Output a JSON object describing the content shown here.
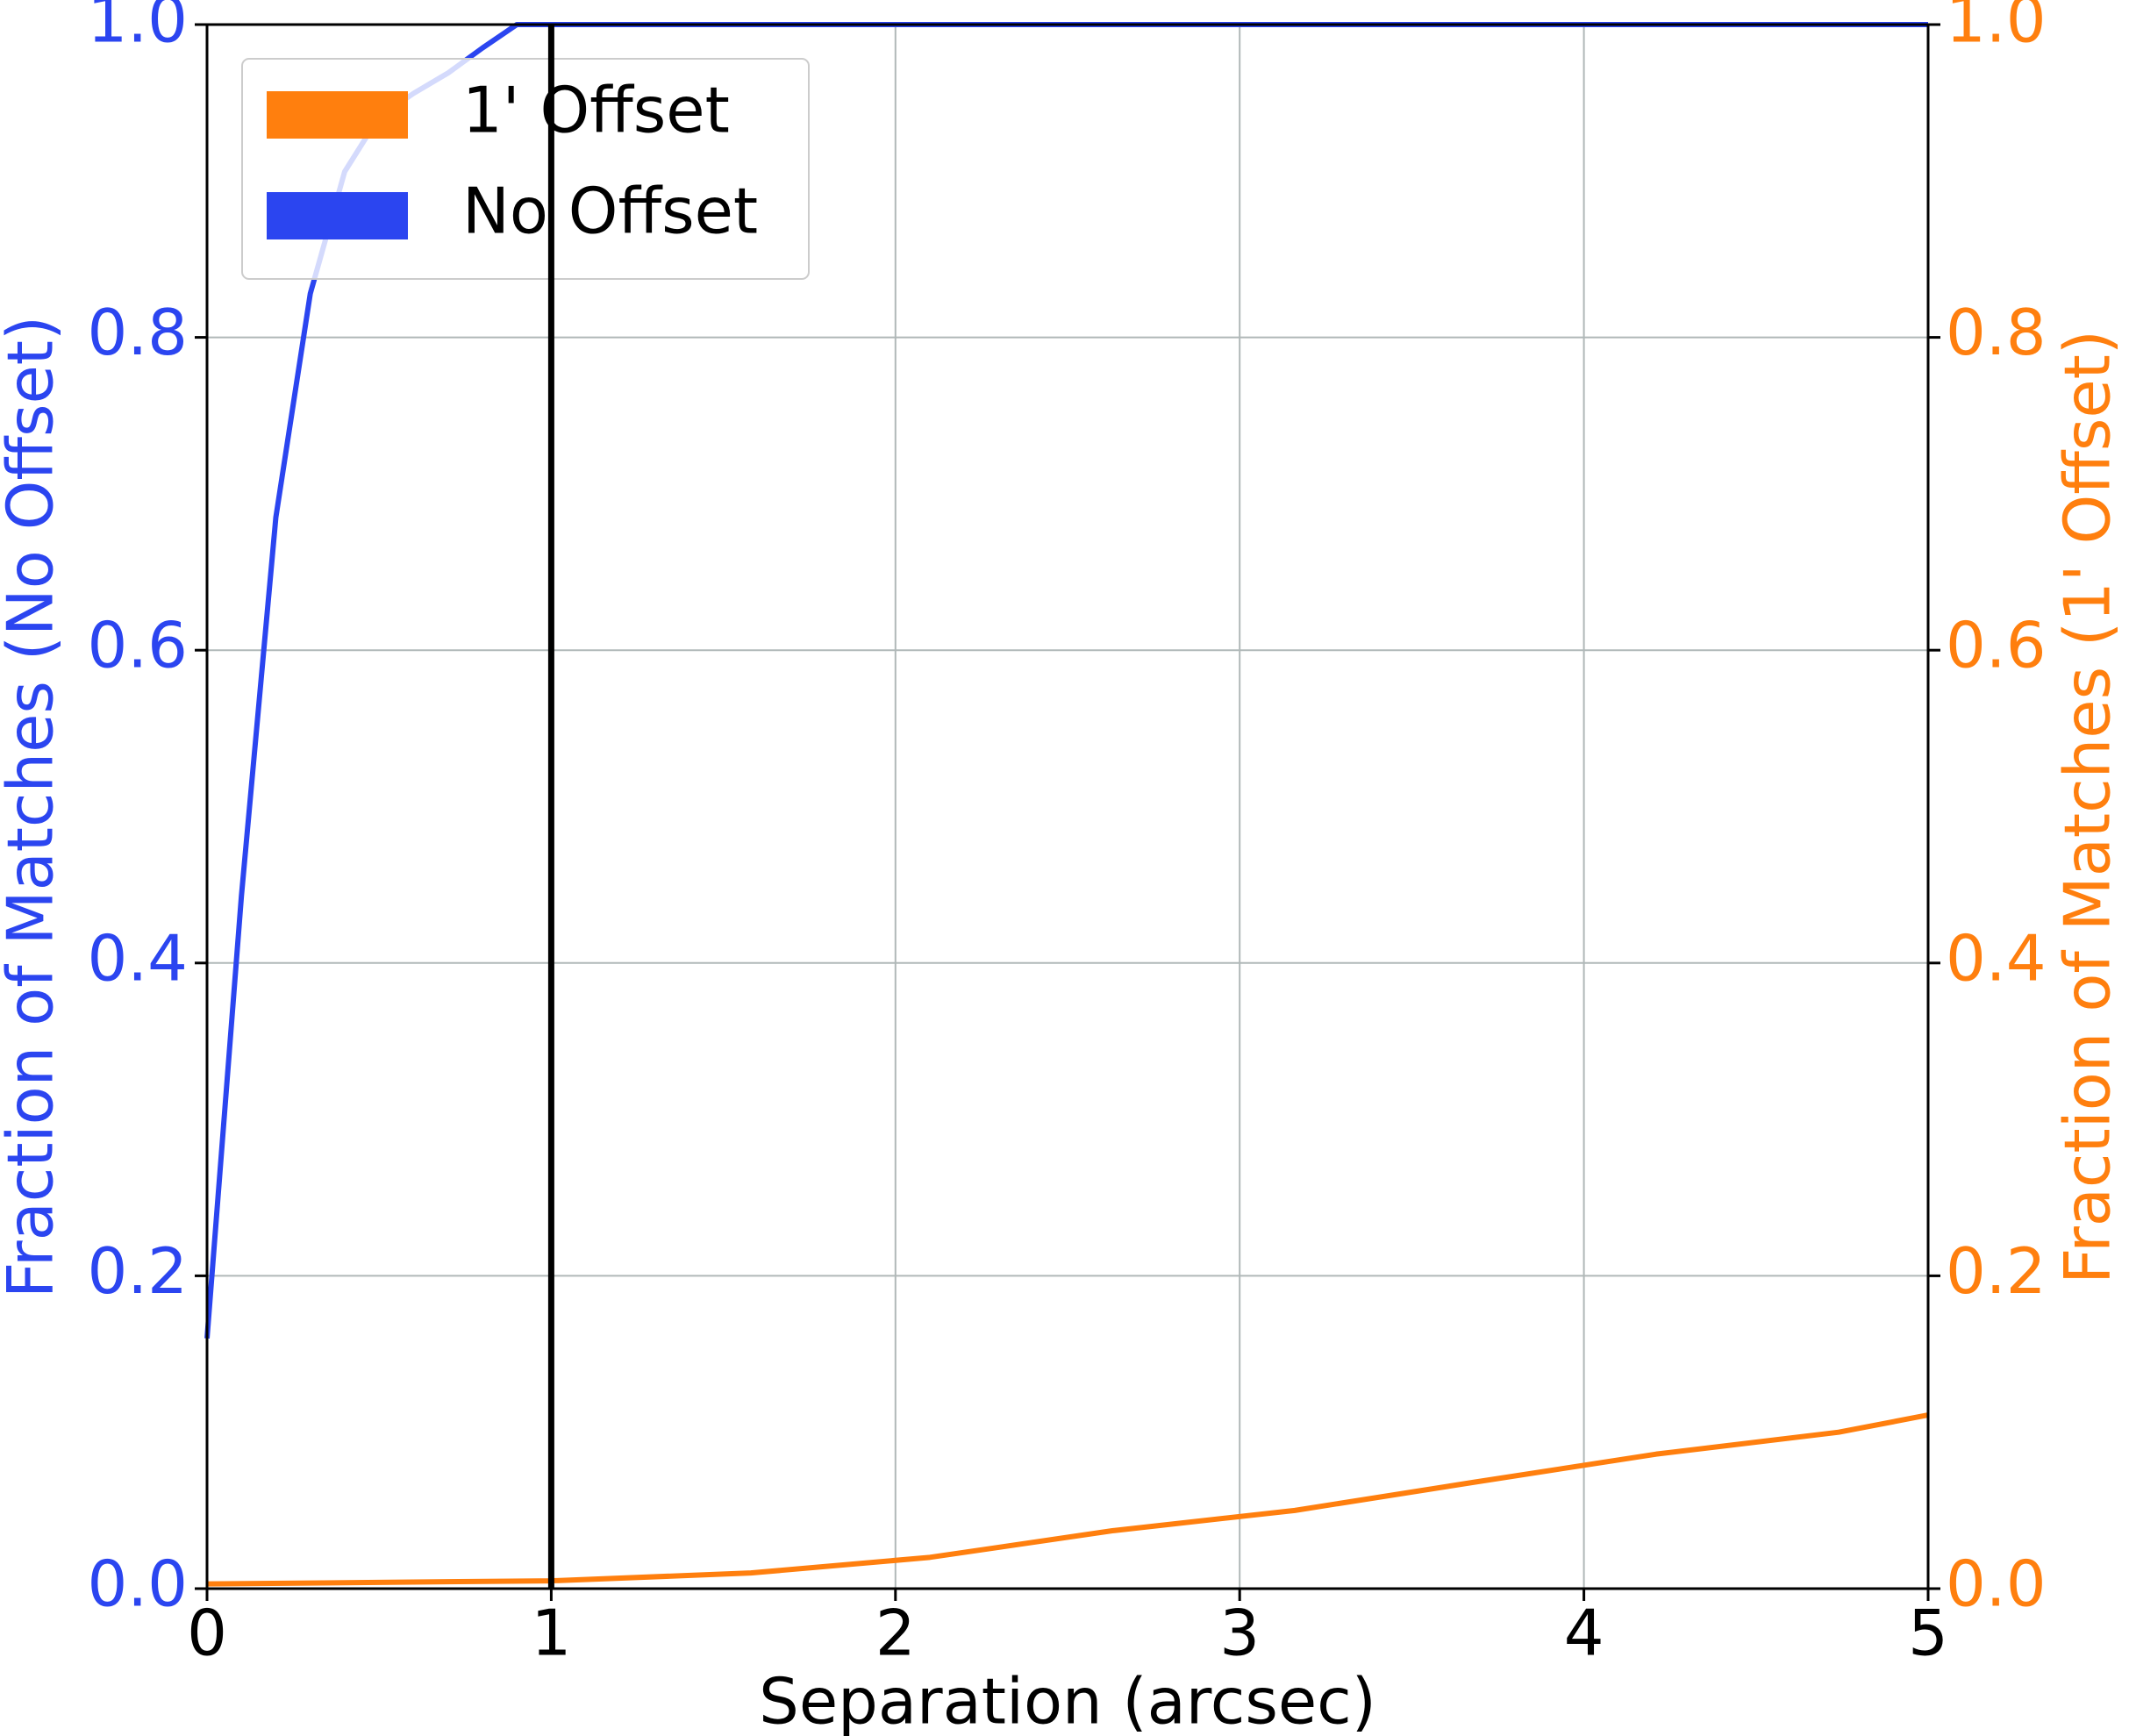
{
  "chart_data": {
    "type": "line",
    "xlabel": "Separation (arcsec)",
    "ylabel": "Fraction of Matches (No Offset)",
    "y2label": "Fraction of Matches (1' Offset)",
    "series": [
      {
        "name": "1' Offset",
        "color": "#ff7f0e",
        "axis": "y2",
        "x": [
          0,
          1,
          1.58,
          2.1,
          2.63,
          3.16,
          3.68,
          4.21,
          4.74,
          5
        ],
        "values": [
          0.003,
          0.005,
          0.01,
          0.02,
          0.037,
          0.05,
          0.068,
          0.086,
          0.1,
          0.111
        ]
      },
      {
        "name": "No Offset",
        "color": "#2b45f0",
        "axis": "y",
        "x": [
          0,
          0.1,
          0.2,
          0.3,
          0.4,
          0.5,
          0.6,
          0.7,
          0.8,
          0.9,
          1,
          2,
          3,
          4,
          5
        ],
        "values": [
          0.16,
          0.443,
          0.685,
          0.828,
          0.906,
          0.941,
          0.956,
          0.969,
          0.985,
          1.0,
          1.0,
          1.0,
          1.0,
          1.0,
          1.0
        ]
      }
    ],
    "vlines": [
      1
    ],
    "xlim": [
      0,
      5
    ],
    "xticks": [
      0,
      1,
      2,
      3,
      4,
      5
    ],
    "ylim": [
      0,
      1
    ],
    "yticks": [
      {
        "value": 0,
        "label": "0.0"
      },
      0.2,
      0.4,
      0.6,
      0.8,
      {
        "value": 1,
        "label": "1.0"
      }
    ],
    "y2lim": [
      0,
      1
    ],
    "y2ticks": [
      {
        "value": 0,
        "label": "0.0"
      },
      0.2,
      0.4,
      0.6,
      0.8,
      {
        "value": 1,
        "label": "1.0"
      }
    ],
    "grid": true,
    "legend": "upper left"
  }
}
